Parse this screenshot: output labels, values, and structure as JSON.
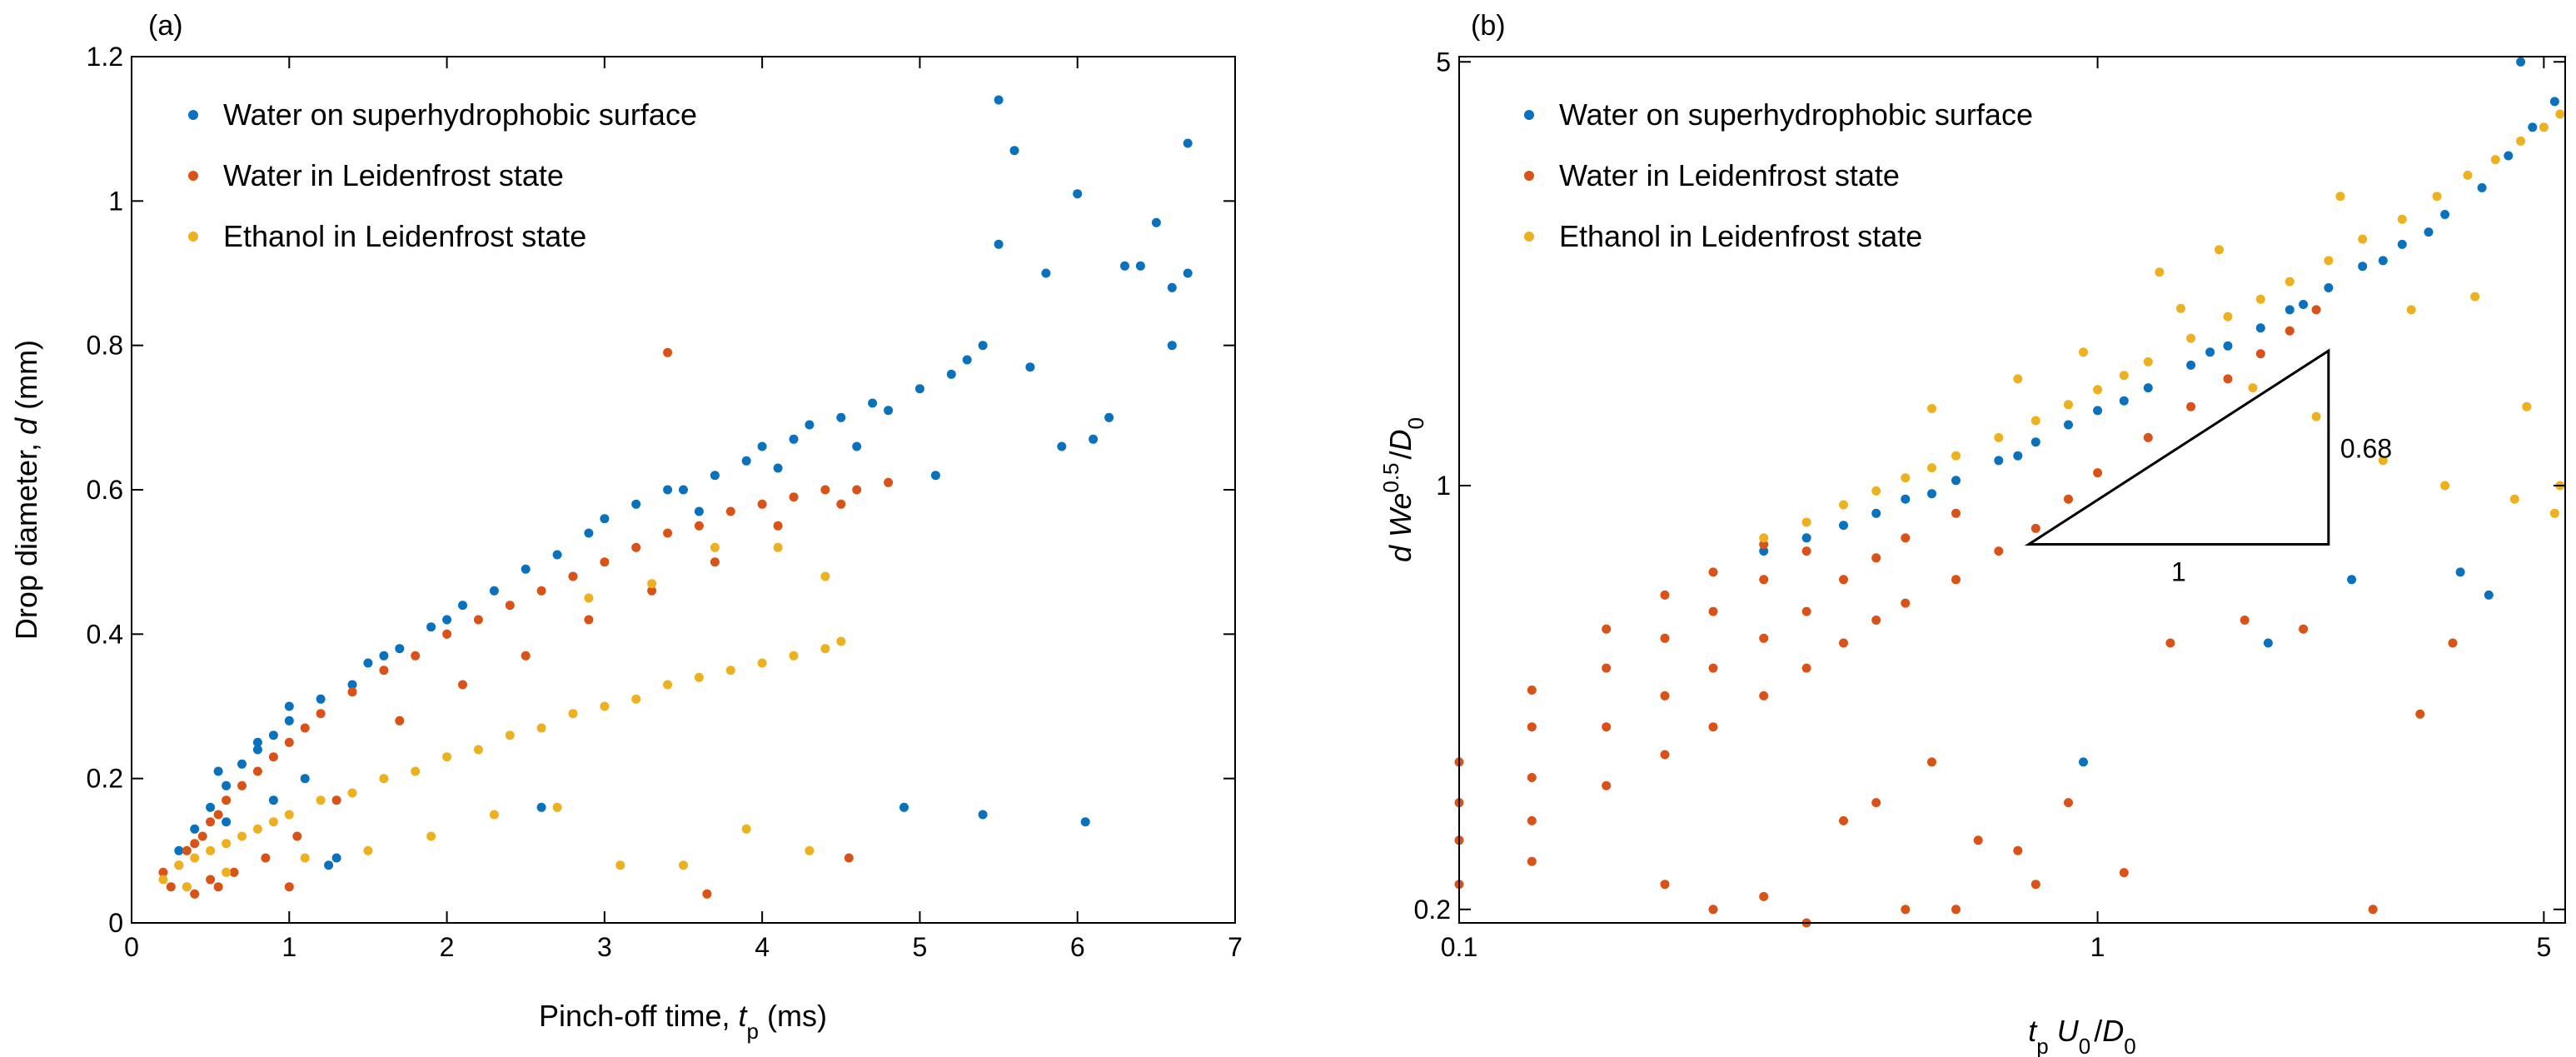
{
  "colors": {
    "water_superhydrophobic": "#0a72bd",
    "water_leidenfrost": "#d95319",
    "ethanol_leidenfrost": "#edb120"
  },
  "chart_data": [
    {
      "panel": "(a)",
      "type": "scatter",
      "xlabel": {
        "text": "Pinch-off time, ",
        "var": "t",
        "sub": "p",
        "unit": " (ms)"
      },
      "ylabel": {
        "text": "Drop diameter, ",
        "var": "d",
        "unit": " (mm)"
      },
      "xscale": "linear",
      "yscale": "linear",
      "xlim": [
        0,
        7
      ],
      "ylim": [
        0,
        1.2
      ],
      "xticks": [
        0,
        1,
        2,
        3,
        4,
        5,
        6,
        7
      ],
      "xtick_labels": [
        "0",
        "1",
        "2",
        "3",
        "4",
        "5",
        "6",
        "7"
      ],
      "yticks": [
        0,
        0.2,
        0.4,
        0.6,
        0.8,
        1,
        1.2
      ],
      "ytick_labels": [
        "0",
        "0.2",
        "0.4",
        "0.6",
        "0.8",
        "1",
        "1.2"
      ],
      "legend": "top-left",
      "series": [
        {
          "name": "Water on superhydrophobic surface",
          "color": "#0a72bd",
          "x": [
            0.3,
            0.4,
            0.5,
            0.6,
            0.7,
            0.8,
            0.9,
            1.0,
            1.2,
            1.4,
            1.5,
            1.7,
            1.9,
            2.1,
            2.3,
            2.5,
            2.7,
            2.9,
            3.0,
            3.2,
            3.4,
            3.5,
            3.7,
            3.9,
            4.0,
            4.2,
            4.3,
            4.5,
            4.7,
            4.8,
            5.0,
            5.2,
            5.3,
            5.4,
            5.5,
            5.6,
            5.7,
            5.8,
            6.0,
            6.1,
            6.2,
            6.4,
            6.5,
            6.6,
            6.7,
            0.6,
            0.9,
            1.1,
            1.3,
            2.6,
            4.9,
            5.4,
            6.05,
            0.55,
            0.8,
            1.0,
            1.6,
            2.0,
            2.8,
            3.6,
            4.1,
            4.6,
            5.1,
            5.5,
            5.9,
            6.3,
            6.6,
            6.7,
            1.25
          ],
          "y": [
            0.1,
            0.13,
            0.16,
            0.19,
            0.22,
            0.24,
            0.26,
            0.28,
            0.31,
            0.33,
            0.36,
            0.38,
            0.41,
            0.44,
            0.46,
            0.49,
            0.51,
            0.54,
            0.56,
            0.58,
            0.6,
            0.6,
            0.62,
            0.64,
            0.66,
            0.67,
            0.69,
            0.7,
            0.72,
            0.71,
            0.74,
            0.76,
            0.78,
            0.8,
            1.14,
            1.07,
            0.77,
            0.9,
            1.01,
            0.67,
            0.7,
            0.91,
            0.97,
            0.88,
            1.08,
            0.14,
            0.17,
            0.2,
            0.09,
            0.16,
            0.16,
            0.15,
            0.14,
            0.21,
            0.25,
            0.3,
            0.37,
            0.42,
            0.48,
            0.57,
            0.63,
            0.66,
            0.62,
            0.94,
            0.66,
            0.91,
            0.8,
            0.9,
            0.08
          ]
        },
        {
          "name": "Water in Leidenfrost state",
          "color": "#d95319",
          "x": [
            0.2,
            0.3,
            0.35,
            0.4,
            0.45,
            0.5,
            0.55,
            0.6,
            0.7,
            0.8,
            0.9,
            1.0,
            1.1,
            1.2,
            1.4,
            1.6,
            1.8,
            2.0,
            2.2,
            2.4,
            2.6,
            2.8,
            3.0,
            3.2,
            3.4,
            3.6,
            3.8,
            4.0,
            4.2,
            4.4,
            4.6,
            4.8,
            0.25,
            0.35,
            0.5,
            0.65,
            0.85,
            1.05,
            1.3,
            1.7,
            2.1,
            2.5,
            2.9,
            3.3,
            3.7,
            4.1,
            4.5,
            3.4,
            3.65,
            4.55,
            1.0,
            0.4,
            0.55
          ],
          "y": [
            0.07,
            0.08,
            0.1,
            0.11,
            0.12,
            0.14,
            0.15,
            0.17,
            0.19,
            0.21,
            0.23,
            0.25,
            0.27,
            0.29,
            0.32,
            0.35,
            0.37,
            0.4,
            0.42,
            0.44,
            0.46,
            0.48,
            0.5,
            0.52,
            0.54,
            0.55,
            0.57,
            0.58,
            0.59,
            0.6,
            0.6,
            0.61,
            0.05,
            0.05,
            0.06,
            0.07,
            0.09,
            0.12,
            0.17,
            0.28,
            0.33,
            0.37,
            0.42,
            0.46,
            0.5,
            0.55,
            0.58,
            0.79,
            0.04,
            0.09,
            0.05,
            0.04,
            0.05
          ]
        },
        {
          "name": "Ethanol in Leidenfrost state",
          "color": "#edb120",
          "x": [
            0.2,
            0.3,
            0.4,
            0.5,
            0.6,
            0.7,
            0.8,
            0.9,
            1.0,
            1.2,
            1.4,
            1.6,
            1.8,
            2.0,
            2.2,
            2.4,
            2.6,
            2.8,
            3.0,
            3.2,
            3.4,
            3.6,
            3.8,
            4.0,
            4.2,
            4.4,
            4.5,
            2.9,
            3.3,
            3.7,
            4.1,
            4.4,
            1.5,
            1.9,
            2.3,
            2.7,
            3.1,
            3.5,
            3.9,
            4.3,
            0.35,
            0.6,
            1.1
          ],
          "y": [
            0.06,
            0.08,
            0.09,
            0.1,
            0.11,
            0.12,
            0.13,
            0.14,
            0.15,
            0.17,
            0.18,
            0.2,
            0.21,
            0.23,
            0.24,
            0.26,
            0.27,
            0.29,
            0.3,
            0.31,
            0.33,
            0.34,
            0.35,
            0.36,
            0.37,
            0.38,
            0.39,
            0.45,
            0.47,
            0.52,
            0.52,
            0.48,
            0.1,
            0.12,
            0.15,
            0.16,
            0.08,
            0.08,
            0.13,
            0.1,
            0.05,
            0.07,
            0.09
          ]
        }
      ]
    },
    {
      "panel": "(b)",
      "type": "scatter",
      "xlabel": {
        "var1": "t",
        "sub1": "p",
        "var2": "U",
        "sub2": "0",
        "slash": "/",
        "var3": "D",
        "sub3": "0"
      },
      "ylabel": {
        "var1": "d",
        "var2": "We",
        "sup": "0.5",
        "slash": "/",
        "var3": "D",
        "sub3": "0"
      },
      "xscale": "log",
      "yscale": "log",
      "xlim": [
        0.1,
        5.4
      ],
      "ylim": [
        0.19,
        5.1
      ],
      "xticks": [
        0.1,
        1,
        5
      ],
      "xtick_labels": [
        "0.1",
        "1",
        "5"
      ],
      "yticks": [
        0.2,
        1,
        5
      ],
      "ytick_labels": [
        "0.2",
        "1",
        "5"
      ],
      "legend": "top-left",
      "slope_triangle": {
        "x_start": 0.78,
        "x_end": 2.3,
        "y_base": 0.8,
        "slope": 0.68,
        "run_label": "1",
        "rise_label": "0.68"
      },
      "series": [
        {
          "name": "Water on superhydrophobic surface",
          "color": "#0a72bd",
          "x": [
            0.3,
            0.35,
            0.4,
            0.45,
            0.5,
            0.6,
            0.7,
            0.8,
            0.9,
            1.0,
            1.2,
            1.4,
            1.6,
            1.8,
            2.0,
            2.3,
            2.6,
            3.0,
            3.5,
            4.0,
            4.4,
            4.8,
            5.2,
            0.95,
            1.85,
            2.5,
            3.7,
            4.1,
            0.55,
            0.75,
            1.1,
            1.5,
            2.1,
            2.8,
            3.3,
            4.6
          ],
          "y": [
            0.78,
            0.82,
            0.86,
            0.9,
            0.95,
            1.02,
            1.1,
            1.18,
            1.26,
            1.33,
            1.45,
            1.58,
            1.7,
            1.82,
            1.95,
            2.12,
            2.3,
            2.5,
            2.8,
            3.1,
            3.5,
            3.9,
            4.3,
            0.35,
            0.55,
            0.7,
            0.72,
            0.66,
            0.97,
            1.12,
            1.38,
            1.66,
            1.99,
            2.35,
            2.62,
            5.0
          ]
        },
        {
          "name": "Water in Leidenfrost state",
          "color": "#d95319",
          "x": [
            0.1,
            0.1,
            0.1,
            0.1,
            0.13,
            0.13,
            0.13,
            0.13,
            0.17,
            0.17,
            0.17,
            0.17,
            0.21,
            0.21,
            0.21,
            0.21,
            0.25,
            0.25,
            0.25,
            0.25,
            0.3,
            0.3,
            0.3,
            0.3,
            0.35,
            0.35,
            0.35,
            0.4,
            0.4,
            0.45,
            0.45,
            0.5,
            0.5,
            0.6,
            0.6,
            0.7,
            0.8,
            0.9,
            1.0,
            1.2,
            1.4,
            1.6,
            1.8,
            2.0,
            2.2,
            0.13,
            0.21,
            0.3,
            0.4,
            0.5,
            0.6,
            0.8,
            1.1,
            2.7,
            3.2,
            3.6,
            0.25,
            0.35,
            0.45,
            0.55,
            0.65,
            0.75,
            0.9,
            1.3,
            1.7,
            2.1
          ],
          "y": [
            0.22,
            0.26,
            0.3,
            0.35,
            0.28,
            0.33,
            0.4,
            0.46,
            0.32,
            0.4,
            0.5,
            0.58,
            0.36,
            0.45,
            0.56,
            0.66,
            0.4,
            0.5,
            0.62,
            0.72,
            0.45,
            0.56,
            0.7,
            0.8,
            0.5,
            0.62,
            0.78,
            0.55,
            0.7,
            0.6,
            0.76,
            0.64,
            0.82,
            0.7,
            0.9,
            0.78,
            0.85,
            0.95,
            1.05,
            1.2,
            1.35,
            1.5,
            1.65,
            1.8,
            1.95,
            0.24,
            0.22,
            0.21,
            0.28,
            0.2,
            0.2,
            0.22,
            0.23,
            0.2,
            0.42,
            0.55,
            0.2,
            0.19,
            0.3,
            0.35,
            0.26,
            0.25,
            0.3,
            0.55,
            0.6,
            0.58
          ]
        },
        {
          "name": "Ethanol in Leidenfrost state",
          "color": "#edb120",
          "x": [
            0.3,
            0.35,
            0.4,
            0.45,
            0.5,
            0.55,
            0.6,
            0.7,
            0.8,
            0.9,
            1.0,
            1.1,
            1.2,
            1.4,
            1.6,
            1.8,
            2.0,
            2.3,
            2.6,
            3.0,
            3.4,
            3.8,
            4.2,
            4.6,
            5.0,
            5.3,
            0.55,
            0.75,
            0.95,
            1.35,
            1.75,
            2.2,
            2.8,
            3.5,
            4.5,
            5.2,
            3.1,
            3.9,
            4.7,
            5.3,
            1.25,
            1.55,
            2.4
          ],
          "y": [
            0.82,
            0.87,
            0.93,
            0.98,
            1.03,
            1.07,
            1.12,
            1.2,
            1.28,
            1.36,
            1.44,
            1.52,
            1.6,
            1.75,
            1.9,
            2.03,
            2.17,
            2.35,
            2.55,
            2.75,
            3.0,
            3.25,
            3.45,
            3.7,
            3.9,
            4.1,
            1.34,
            1.5,
            1.66,
            1.96,
            1.45,
            1.3,
            1.1,
            1.0,
            0.95,
            0.9,
            1.95,
            2.05,
            1.35,
            1.0,
            2.25,
            2.45,
            3.0
          ]
        }
      ]
    }
  ]
}
